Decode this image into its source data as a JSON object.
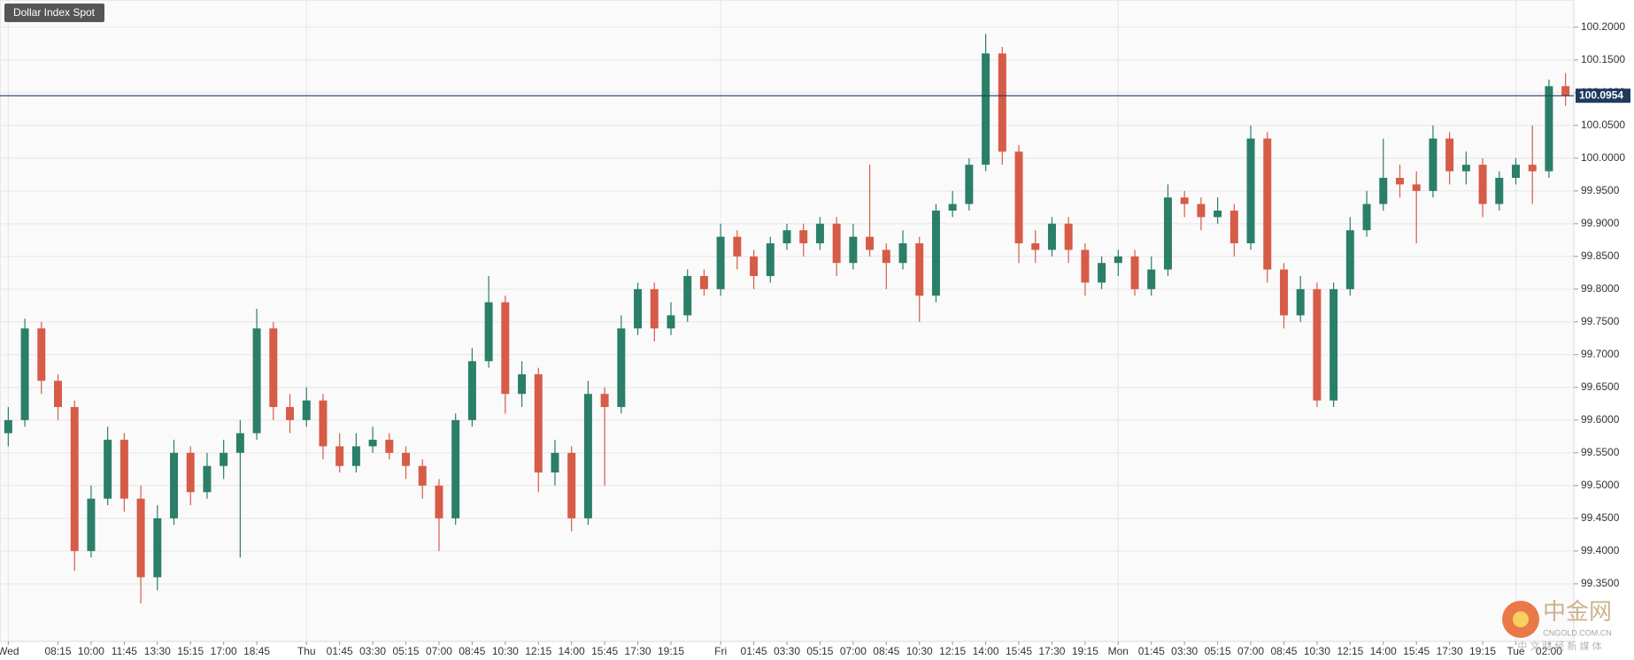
{
  "chart_data": {
    "type": "candlestick",
    "title": "Dollar Index Spot",
    "categories": [
      "Wed",
      null,
      null,
      "08:15",
      null,
      "10:00",
      null,
      "11:45",
      null,
      "13:30",
      null,
      "15:15",
      null,
      "17:00",
      null,
      "18:45",
      null,
      null,
      "Thu",
      null,
      "01:45",
      null,
      "03:30",
      null,
      "05:15",
      null,
      "07:00",
      null,
      "08:45",
      null,
      "10:30",
      null,
      "12:15",
      null,
      "14:00",
      null,
      "15:45",
      null,
      "17:30",
      null,
      "19:15",
      null,
      null,
      "Fri",
      null,
      "01:45",
      null,
      "03:30",
      null,
      "05:15",
      null,
      "07:00",
      null,
      "08:45",
      null,
      "10:30",
      null,
      "12:15",
      null,
      "14:00",
      null,
      "15:45",
      null,
      "17:30",
      null,
      "19:15",
      null,
      "Mon",
      null,
      "01:45",
      null,
      "03:30",
      null,
      "05:15",
      null,
      "07:00",
      null,
      "08:45",
      null,
      "10:30",
      null,
      "12:15",
      null,
      "14:00",
      null,
      "15:45",
      null,
      "17:30",
      null,
      "19:15",
      null,
      "Tue",
      null,
      "02:00",
      null
    ],
    "open": [
      99.58,
      99.6,
      99.74,
      99.66,
      99.62,
      99.4,
      99.48,
      99.57,
      99.48,
      99.36,
      99.45,
      99.55,
      99.49,
      99.53,
      99.55,
      99.58,
      99.74,
      99.62,
      99.6,
      99.63,
      99.56,
      99.53,
      99.56,
      99.57,
      99.55,
      99.53,
      99.5,
      99.45,
      99.6,
      99.69,
      99.78,
      99.64,
      99.67,
      99.52,
      99.55,
      99.45,
      99.64,
      99.62,
      99.74,
      99.8,
      99.74,
      99.76,
      99.82,
      99.8,
      99.88,
      99.85,
      99.82,
      99.87,
      99.89,
      99.87,
      99.9,
      99.84,
      99.88,
      99.86,
      99.84,
      99.87,
      99.79,
      99.92,
      99.93,
      99.99,
      100.16,
      100.01,
      99.87,
      99.86,
      99.9,
      99.86,
      99.81,
      99.84,
      99.85,
      99.8,
      99.83,
      99.94,
      99.93,
      99.91,
      99.92,
      99.87,
      100.03,
      99.83,
      99.76,
      99.8,
      99.63,
      99.8,
      99.89,
      99.93,
      99.97,
      99.96,
      99.95,
      100.03,
      99.98,
      99.99,
      99.93,
      99.97,
      99.99,
      99.98,
      100.11
    ],
    "high": [
      99.62,
      99.755,
      99.75,
      99.67,
      99.63,
      99.5,
      99.59,
      99.58,
      99.5,
      99.47,
      99.57,
      99.56,
      99.55,
      99.57,
      99.6,
      99.77,
      99.75,
      99.64,
      99.65,
      99.64,
      99.58,
      99.58,
      99.59,
      99.58,
      99.56,
      99.54,
      99.51,
      99.61,
      99.71,
      99.82,
      99.79,
      99.69,
      99.68,
      99.57,
      99.56,
      99.66,
      99.65,
      99.76,
      99.81,
      99.81,
      99.78,
      99.83,
      99.83,
      99.9,
      99.89,
      99.86,
      99.88,
      99.9,
      99.9,
      99.91,
      99.91,
      99.9,
      99.99,
      99.87,
      99.89,
      99.88,
      99.93,
      99.95,
      100.0,
      100.19,
      100.17,
      100.02,
      99.89,
      99.91,
      99.91,
      99.87,
      99.85,
      99.86,
      99.86,
      99.85,
      99.96,
      99.95,
      99.94,
      99.94,
      99.93,
      100.05,
      100.04,
      99.84,
      99.82,
      99.81,
      99.81,
      99.91,
      99.95,
      100.03,
      99.99,
      99.98,
      100.05,
      100.04,
      100.01,
      100.0,
      99.98,
      100.0,
      100.05,
      100.12,
      100.13
    ],
    "low": [
      99.56,
      99.59,
      99.64,
      99.6,
      99.37,
      99.39,
      99.47,
      99.46,
      99.32,
      99.34,
      99.44,
      99.47,
      99.48,
      99.51,
      99.39,
      99.57,
      99.6,
      99.58,
      99.59,
      99.54,
      99.52,
      99.52,
      99.55,
      99.54,
      99.51,
      99.48,
      99.4,
      99.44,
      99.59,
      99.68,
      99.61,
      99.62,
      99.49,
      99.5,
      99.43,
      99.44,
      99.5,
      99.61,
      99.73,
      99.72,
      99.73,
      99.75,
      99.79,
      99.79,
      99.83,
      99.8,
      99.81,
      99.86,
      99.85,
      99.86,
      99.82,
      99.83,
      99.85,
      99.8,
      99.83,
      99.75,
      99.78,
      99.91,
      99.92,
      99.98,
      99.99,
      99.84,
      99.84,
      99.85,
      99.84,
      99.79,
      99.8,
      99.82,
      99.79,
      99.79,
      99.82,
      99.91,
      99.89,
      99.9,
      99.85,
      99.86,
      99.81,
      99.74,
      99.75,
      99.62,
      99.62,
      99.79,
      99.88,
      99.92,
      99.94,
      99.87,
      99.94,
      99.96,
      99.96,
      99.91,
      99.92,
      99.96,
      99.93,
      99.97,
      100.08
    ],
    "close": [
      99.6,
      99.74,
      99.66,
      99.62,
      99.4,
      99.48,
      99.57,
      99.48,
      99.36,
      99.45,
      99.55,
      99.49,
      99.53,
      99.55,
      99.58,
      99.74,
      99.62,
      99.6,
      99.63,
      99.56,
      99.53,
      99.56,
      99.57,
      99.55,
      99.53,
      99.5,
      99.45,
      99.6,
      99.69,
      99.78,
      99.64,
      99.67,
      99.52,
      99.55,
      99.45,
      99.64,
      99.62,
      99.74,
      99.8,
      99.74,
      99.76,
      99.82,
      99.8,
      99.88,
      99.85,
      99.82,
      99.87,
      99.89,
      99.87,
      99.9,
      99.84,
      99.88,
      99.86,
      99.84,
      99.87,
      99.79,
      99.92,
      99.93,
      99.99,
      100.16,
      100.01,
      99.87,
      99.86,
      99.9,
      99.86,
      99.81,
      99.84,
      99.85,
      99.8,
      99.83,
      99.94,
      99.93,
      99.91,
      99.92,
      99.87,
      100.03,
      99.83,
      99.76,
      99.8,
      99.63,
      99.8,
      99.89,
      99.93,
      99.97,
      99.96,
      99.95,
      100.03,
      99.98,
      99.99,
      99.93,
      99.97,
      99.99,
      99.98,
      100.11,
      100.095
    ],
    "up_color": "#2b7f69",
    "down_color": "#d65c48",
    "ylim": [
      99.262,
      100.2416
    ],
    "yticks": [
      {
        "value": 99.35,
        "label": "99.3500"
      },
      {
        "value": 99.4,
        "label": "99.4000"
      },
      {
        "value": 99.45,
        "label": "99.4500"
      },
      {
        "value": 99.5,
        "label": "99.5000"
      },
      {
        "value": 99.55,
        "label": "99.5500"
      },
      {
        "value": 99.6,
        "label": "99.6000"
      },
      {
        "value": 99.65,
        "label": "99.6500"
      },
      {
        "value": 99.7,
        "label": "99.7000"
      },
      {
        "value": 99.75,
        "label": "99.7500"
      },
      {
        "value": 99.8,
        "label": "99.8000"
      },
      {
        "value": 99.85,
        "label": "99.8500"
      },
      {
        "value": 99.9,
        "label": "99.9000"
      },
      {
        "value": 99.95,
        "label": "99.9500"
      },
      {
        "value": 100,
        "label": "100.0000"
      },
      {
        "value": 100.05,
        "label": "100.0500"
      },
      {
        "value": 100.1,
        "label": "100.1000"
      },
      {
        "value": 100.15,
        "label": "100.1500"
      },
      {
        "value": 100.2,
        "label": "100.2000"
      }
    ],
    "grid": true,
    "current_price": {
      "value": 100.0954,
      "label": "100.0954",
      "color": "#1f3a5f"
    },
    "watermark": {
      "logo": "中金网",
      "domain": "CNGOLD.COM.CN",
      "slogan": "中 文 财 经 新 媒 体"
    }
  }
}
